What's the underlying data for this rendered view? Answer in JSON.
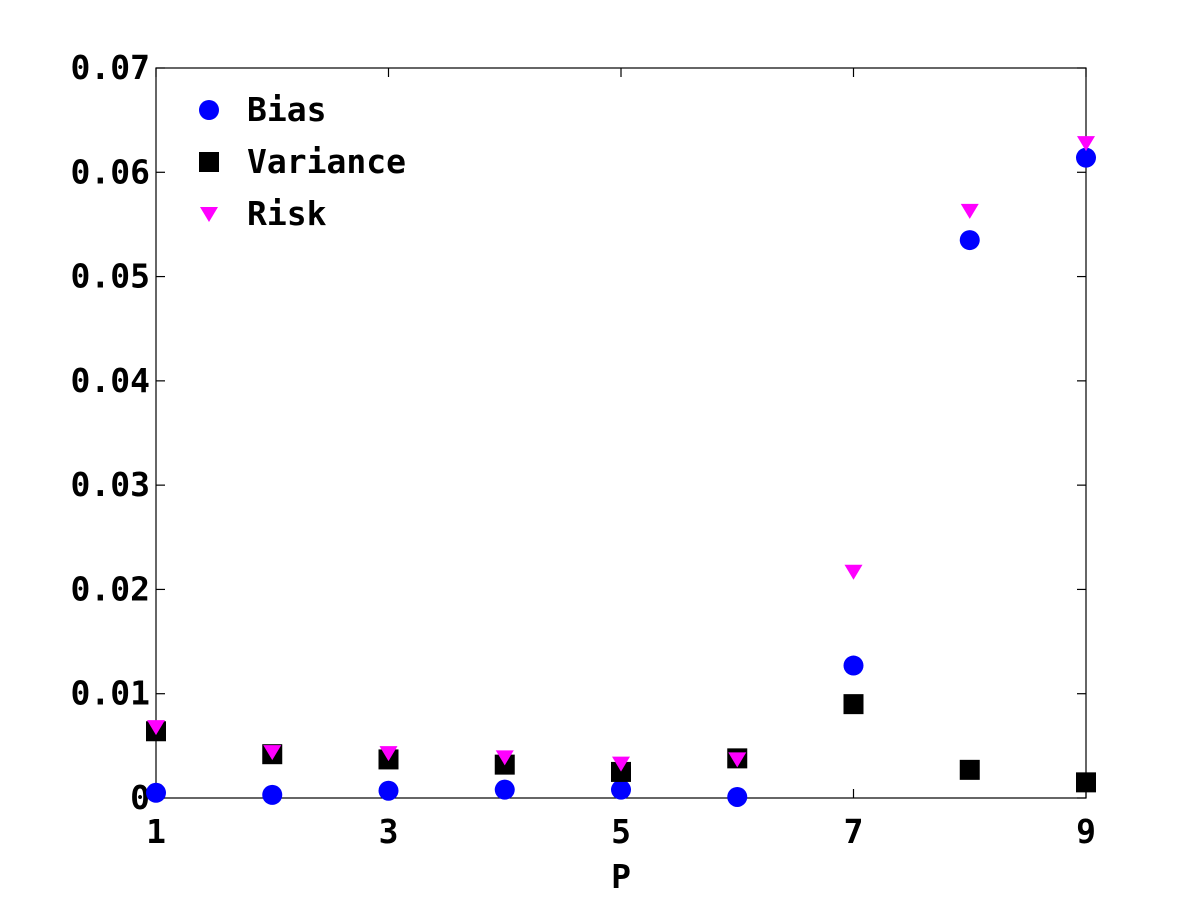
{
  "chart_data": {
    "type": "scatter",
    "title": "",
    "xlabel": "P",
    "ylabel": "",
    "xlim": [
      1,
      9
    ],
    "ylim": [
      0,
      0.07
    ],
    "xticks": [
      1,
      3,
      5,
      7,
      9
    ],
    "xtick_labels": [
      "1",
      "3",
      "5",
      "7",
      "9"
    ],
    "yticks": [
      0,
      0.01,
      0.02,
      0.03,
      0.04,
      0.05,
      0.06,
      0.07
    ],
    "ytick_labels": [
      "0",
      "0.01",
      "0.02",
      "0.03",
      "0.04",
      "0.05",
      "0.06",
      "0.07"
    ],
    "grid": false,
    "legend_position": "top-left",
    "x": [
      1,
      2,
      3,
      4,
      5,
      6,
      7,
      8,
      9
    ],
    "series": [
      {
        "name": "Bias",
        "marker": "circle",
        "color": "#0000ff",
        "values": [
          0.0005,
          0.0003,
          0.0007,
          0.0008,
          0.0008,
          0.0001,
          0.0127,
          0.0535,
          0.0614
        ]
      },
      {
        "name": "Variance",
        "marker": "square",
        "color": "#000000",
        "values": [
          0.0064,
          0.0042,
          0.0037,
          0.0032,
          0.0025,
          0.0038,
          0.009,
          0.0027,
          0.0015
        ]
      },
      {
        "name": "Risk",
        "marker": "triangle-down",
        "color": "#ff00ff",
        "values": [
          0.0068,
          0.0044,
          0.0043,
          0.0039,
          0.0033,
          0.0037,
          0.0217,
          0.0563,
          0.0628
        ]
      }
    ]
  }
}
